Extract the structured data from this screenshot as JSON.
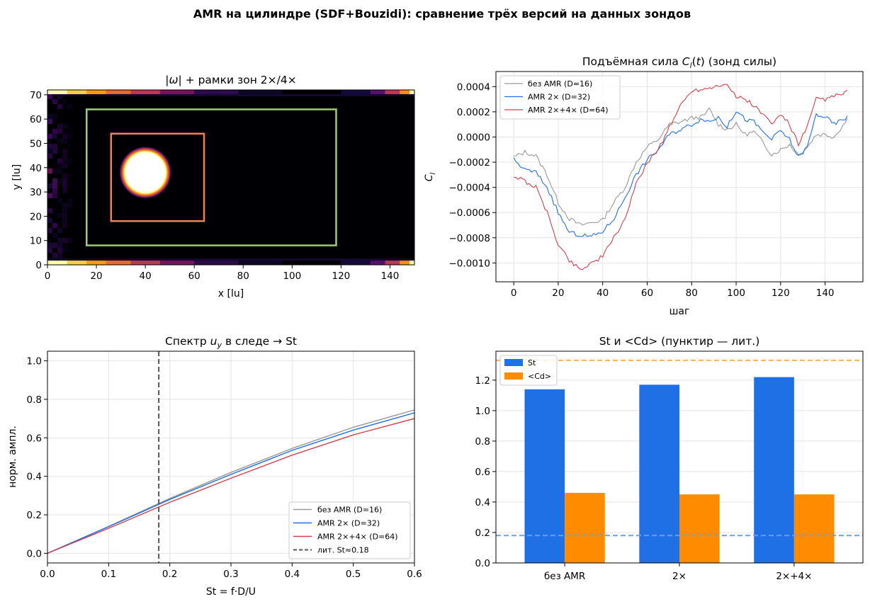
{
  "suptitle": "AMR на цилиндре (SDF+Bouzidi): сравнение трёх версий на данных зондов",
  "colors": {
    "gray": "#999999",
    "blue": "#1f6fe5",
    "red": "#d0404e",
    "green_box": "#a0cc78",
    "orange_box": "#f0805a",
    "bar_st": "#1f6fe5",
    "bar_cd": "#ff8c00",
    "lit_cd_line": "#ffb060",
    "lit_st_line": "#6aa0e8"
  },
  "chart_data": [
    {
      "id": "vorticity",
      "type": "heatmap",
      "title": "|ω| + рамки зон 2×/4×",
      "xlabel": "x [lu]",
      "ylabel": "y [lu]",
      "xlim": [
        0,
        150
      ],
      "ylim": [
        0,
        72
      ],
      "xticks": [
        "0",
        "20",
        "40",
        "60",
        "80",
        "100",
        "120",
        "140"
      ],
      "yticks": [
        "0",
        "10",
        "20",
        "30",
        "40",
        "50",
        "60",
        "70"
      ],
      "colormap": "inferno",
      "cylinder": {
        "cx": 40,
        "cy": 38,
        "r": 8
      },
      "zones": [
        {
          "name": "2×",
          "x0": 16,
          "x1": 118,
          "y0": 8,
          "y1": 64
        },
        {
          "name": "4×",
          "x0": 26,
          "x1": 64,
          "y0": 18,
          "y1": 54
        }
      ]
    },
    {
      "id": "lift",
      "type": "line",
      "title": "Подъёмная сила C_l(t) (зонд силы)",
      "xlabel": "шаг",
      "ylabel": "C_l",
      "xlim": [
        -8,
        157
      ],
      "ylim": [
        -0.00115,
        0.00052
      ],
      "xticks": [
        0,
        20,
        40,
        60,
        80,
        100,
        120,
        140
      ],
      "yticks": [
        "−0.0010",
        "−0.0008",
        "−0.0006",
        "−0.0004",
        "−0.0002",
        "0.0000",
        "0.0002",
        "0.0004"
      ],
      "ytick_values": [
        -0.001,
        -0.0008,
        -0.0006,
        -0.0004,
        -0.0002,
        0,
        0.0002,
        0.0004
      ],
      "legend": "upper left",
      "series": [
        {
          "name": "без AMR (D=16)",
          "color": "#999999",
          "keypoints": [
            [
              0,
              -0.00016
            ],
            [
              5,
              -0.00012
            ],
            [
              10,
              -0.00015
            ],
            [
              15,
              -0.0003
            ],
            [
              20,
              -0.00052
            ],
            [
              25,
              -0.00065
            ],
            [
              30,
              -0.0007
            ],
            [
              35,
              -0.00068
            ],
            [
              40,
              -0.00066
            ],
            [
              45,
              -0.00052
            ],
            [
              50,
              -0.0004
            ],
            [
              55,
              -0.0002
            ],
            [
              60,
              -8e-05
            ],
            [
              65,
              -2e-05
            ],
            [
              70,
              0.0001
            ],
            [
              75,
              0.00012
            ],
            [
              80,
              0.00015
            ],
            [
              85,
              0.00016
            ],
            [
              88,
              0.00022
            ],
            [
              92,
              0.0001
            ],
            [
              96,
              6e-05
            ],
            [
              100,
              0.0001
            ],
            [
              104,
              2e-05
            ],
            [
              108,
              4e-05
            ],
            [
              112,
              -4e-05
            ],
            [
              116,
              -0.00014
            ],
            [
              120,
              -0.0001
            ],
            [
              124,
              -6e-05
            ],
            [
              128,
              -0.00014
            ],
            [
              132,
              -8e-05
            ],
            [
              136,
              2e-05
            ],
            [
              140,
              2e-05
            ],
            [
              144,
              0.0
            ],
            [
              150,
              0.00014
            ]
          ]
        },
        {
          "name": "AMR 2× (D=32)",
          "color": "#1f6fe5",
          "keypoints": [
            [
              0,
              -0.00018
            ],
            [
              5,
              -0.00026
            ],
            [
              10,
              -0.00028
            ],
            [
              15,
              -0.0004
            ],
            [
              20,
              -0.0006
            ],
            [
              25,
              -0.00076
            ],
            [
              30,
              -0.00078
            ],
            [
              35,
              -0.00079
            ],
            [
              40,
              -0.00075
            ],
            [
              45,
              -0.00065
            ],
            [
              50,
              -0.00048
            ],
            [
              55,
              -0.0003
            ],
            [
              60,
              -0.00018
            ],
            [
              65,
              -0.0001
            ],
            [
              70,
              2e-05
            ],
            [
              75,
              6e-05
            ],
            [
              80,
              0.0001
            ],
            [
              85,
              0.00015
            ],
            [
              88,
              0.00012
            ],
            [
              92,
              0.00016
            ],
            [
              96,
              8e-05
            ],
            [
              100,
              0.00021
            ],
            [
              104,
              0.00014
            ],
            [
              108,
              0.00012
            ],
            [
              112,
              4e-05
            ],
            [
              116,
              -2e-05
            ],
            [
              120,
              5e-05
            ],
            [
              124,
              -2e-05
            ],
            [
              128,
              -0.00016
            ],
            [
              132,
              -8e-05
            ],
            [
              136,
              0.00018
            ],
            [
              140,
              0.00016
            ],
            [
              144,
              0.0001
            ],
            [
              150,
              0.00016
            ]
          ]
        },
        {
          "name": "AMR 2×+4× (D=64)",
          "color": "#d0404e",
          "keypoints": [
            [
              0,
              -0.00031
            ],
            [
              5,
              -0.00035
            ],
            [
              10,
              -0.0004
            ],
            [
              15,
              -0.0006
            ],
            [
              20,
              -0.00085
            ],
            [
              25,
              -0.00098
            ],
            [
              30,
              -0.00105
            ],
            [
              35,
              -0.001
            ],
            [
              40,
              -0.00095
            ],
            [
              45,
              -0.0008
            ],
            [
              50,
              -0.00065
            ],
            [
              55,
              -0.00038
            ],
            [
              60,
              -0.0002
            ],
            [
              65,
              -0.0001
            ],
            [
              70,
              8e-05
            ],
            [
              75,
              0.00025
            ],
            [
              80,
              0.00037
            ],
            [
              85,
              0.00038
            ],
            [
              90,
              0.0004
            ],
            [
              95,
              0.00043
            ],
            [
              100,
              0.00032
            ],
            [
              104,
              0.0003
            ],
            [
              108,
              0.00025
            ],
            [
              112,
              0.00018
            ],
            [
              116,
              0.0001
            ],
            [
              120,
              0.00018
            ],
            [
              124,
              0.0001
            ],
            [
              128,
              -6e-05
            ],
            [
              132,
              8e-05
            ],
            [
              136,
              0.0003
            ],
            [
              140,
              0.0003
            ],
            [
              144,
              0.00032
            ],
            [
              150,
              0.00036
            ]
          ]
        }
      ]
    },
    {
      "id": "spectrum",
      "type": "line",
      "title": "Спектр u_y в следе → St",
      "xlabel": "St = f·D/U",
      "ylabel": "норм. ампл.",
      "xlim": [
        0,
        0.6
      ],
      "ylim": [
        -0.05,
        1.05
      ],
      "xticks": [
        "0.0",
        "0.1",
        "0.2",
        "0.3",
        "0.4",
        "0.5",
        "0.6"
      ],
      "yticks": [
        "0.0",
        "0.2",
        "0.4",
        "0.6",
        "0.8",
        "1.0"
      ],
      "legend": "lower right",
      "series": [
        {
          "name": "без AMR (D=16)",
          "color": "#999999",
          "x": [
            0,
            0.1,
            0.2,
            0.3,
            0.4,
            0.5,
            0.6
          ],
          "y": [
            0,
            0.14,
            0.285,
            0.42,
            0.545,
            0.655,
            0.745
          ]
        },
        {
          "name": "AMR 2× (D=32)",
          "color": "#1f6fe5",
          "x": [
            0,
            0.1,
            0.2,
            0.3,
            0.4,
            0.5,
            0.6
          ],
          "y": [
            0,
            0.138,
            0.28,
            0.41,
            0.535,
            0.64,
            0.73
          ]
        },
        {
          "name": "AMR 2×+4× (D=64)",
          "color": "#d0404e",
          "x": [
            0,
            0.1,
            0.2,
            0.3,
            0.4,
            0.5,
            0.6
          ],
          "y": [
            0,
            0.13,
            0.265,
            0.39,
            0.51,
            0.615,
            0.7
          ]
        }
      ],
      "vline": {
        "x": 0.182,
        "name": "лит. St≈0.18",
        "color": "#555555"
      }
    },
    {
      "id": "bars",
      "type": "bar",
      "title": "St и <Cd> (пунктир — лит.)",
      "categories": [
        "без AMR",
        "2×",
        "2×+4×"
      ],
      "ylim": [
        0,
        1.39
      ],
      "yticks": [
        "0.0",
        "0.2",
        "0.4",
        "0.6",
        "0.8",
        "1.0",
        "1.2"
      ],
      "legend": "upper left",
      "series": [
        {
          "name": "St",
          "color": "#1f6fe5",
          "values": [
            1.14,
            1.17,
            1.22
          ]
        },
        {
          "name": "<Cd>",
          "color": "#ff8c00",
          "values": [
            0.46,
            0.45,
            0.45
          ]
        }
      ],
      "reference_lines": [
        {
          "value": 1.33,
          "color": "#ffb060"
        },
        {
          "value": 0.18,
          "color": "#6aa0e8"
        }
      ]
    }
  ]
}
